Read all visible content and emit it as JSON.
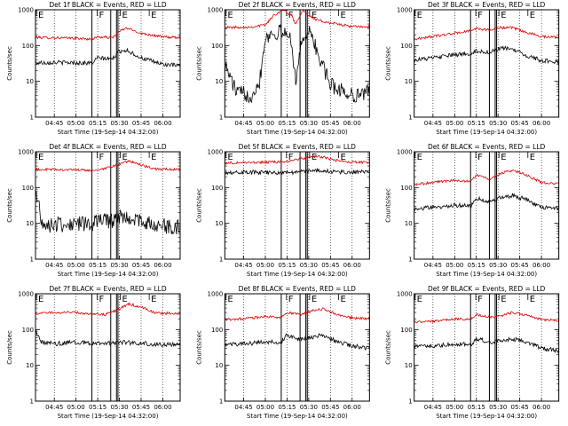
{
  "figure": {
    "background": "#ffffff",
    "series_colors": {
      "black": "#000000",
      "red": "#dd0000"
    }
  },
  "chart_data": [
    {
      "type": "line",
      "title": "Det 1f BLACK = Events, RED = LLD",
      "xlabel": "Start Time (19-Sep-14 04:32:00)",
      "ylabel": "Counts/sec",
      "xlim": [
        "04:32",
        "06:12"
      ],
      "xticks": [
        "04:45",
        "05:00",
        "05:15",
        "05:30",
        "05:45",
        "06:00"
      ],
      "ylim": [
        1,
        1000
      ],
      "ylog": true,
      "yticks": [
        "1",
        "10",
        "100",
        "1000"
      ],
      "segment_markers": [
        {
          "time": "04:32",
          "label": "E"
        },
        {
          "time": "05:14",
          "label": "F"
        },
        {
          "time": "05:30",
          "label": "E"
        },
        {
          "time": "05:50",
          "label": "E"
        }
      ],
      "boundaries": [
        "05:11",
        "05:24",
        "05:28",
        "05:29"
      ],
      "series": [
        {
          "color": "red",
          "x": [
            "04:32",
            "04:45",
            "05:00",
            "05:11",
            "05:15",
            "05:25",
            "05:30",
            "05:35",
            "05:45",
            "06:00",
            "06:12"
          ],
          "y": [
            170,
            165,
            160,
            150,
            175,
            165,
            250,
            310,
            220,
            175,
            165
          ]
        },
        {
          "color": "black",
          "x": [
            "04:32",
            "04:45",
            "05:00",
            "05:11",
            "05:15",
            "05:25",
            "05:30",
            "05:35",
            "05:45",
            "06:00",
            "06:12"
          ],
          "y": [
            33,
            34,
            33,
            32,
            45,
            42,
            70,
            75,
            45,
            30,
            27
          ]
        }
      ]
    },
    {
      "type": "line",
      "title": "Det 2f BLACK = Events, RED = LLD",
      "xlabel": "Start Time (19-Sep-14 04:32:00)",
      "ylabel": "Counts/sec",
      "xlim": [
        "04:32",
        "06:12"
      ],
      "xticks": [
        "04:45",
        "05:00",
        "05:15",
        "05:30",
        "05:45",
        "06:00"
      ],
      "ylim": [
        1,
        1000
      ],
      "ylog": true,
      "yticks": [
        "1",
        "10",
        "100",
        "1000"
      ],
      "segment_markers": [
        {
          "time": "04:32",
          "label": "E"
        },
        {
          "time": "05:14",
          "label": "F"
        },
        {
          "time": "05:30",
          "label": "E"
        },
        {
          "time": "05:50",
          "label": "E"
        }
      ],
      "boundaries": [
        "05:11",
        "05:24",
        "05:28",
        "05:29"
      ],
      "series": [
        {
          "color": "red",
          "x": [
            "04:32",
            "04:50",
            "05:00",
            "05:06",
            "05:12",
            "05:18",
            "05:21",
            "05:26",
            "05:30",
            "05:35",
            "05:45",
            "06:00",
            "06:12"
          ],
          "y": [
            320,
            330,
            380,
            700,
            1000,
            700,
            400,
            1000,
            700,
            520,
            430,
            340,
            330
          ]
        },
        {
          "color": "black",
          "x": [
            "04:32",
            "04:40",
            "04:50",
            "04:56",
            "05:00",
            "05:06",
            "05:12",
            "05:18",
            "05:21",
            "05:26",
            "05:32",
            "05:36",
            "05:45",
            "06:00",
            "06:12"
          ],
          "y": [
            30,
            5,
            4,
            10,
            180,
            220,
            240,
            150,
            10,
            200,
            220,
            60,
            8,
            4,
            5
          ]
        }
      ]
    },
    {
      "type": "line",
      "title": "Det 3f BLACK = Events, RED = LLD",
      "xlabel": "Start Time (19-Sep-14 04:32:00)",
      "ylabel": "Counts/sec",
      "xlim": [
        "04:32",
        "06:12"
      ],
      "xticks": [
        "04:45",
        "05:00",
        "05:15",
        "05:30",
        "05:45",
        "06:00"
      ],
      "ylim": [
        1,
        1000
      ],
      "ylog": true,
      "yticks": [
        "1",
        "10",
        "100",
        "1000"
      ],
      "segment_markers": [
        {
          "time": "04:32",
          "label": "E"
        },
        {
          "time": "05:14",
          "label": "F"
        },
        {
          "time": "05:30",
          "label": "E"
        },
        {
          "time": "05:50",
          "label": "E"
        }
      ],
      "boundaries": [
        "05:11",
        "05:24",
        "05:28",
        "05:29"
      ],
      "series": [
        {
          "color": "red",
          "x": [
            "04:32",
            "04:45",
            "05:00",
            "05:11",
            "05:15",
            "05:25",
            "05:30",
            "05:40",
            "05:50",
            "06:00",
            "06:12"
          ],
          "y": [
            150,
            180,
            220,
            260,
            300,
            270,
            320,
            310,
            230,
            180,
            170
          ]
        },
        {
          "color": "black",
          "x": [
            "04:32",
            "04:45",
            "05:00",
            "05:11",
            "05:15",
            "05:25",
            "05:30",
            "05:38",
            "05:48",
            "06:00",
            "06:12"
          ],
          "y": [
            40,
            45,
            55,
            60,
            70,
            65,
            80,
            85,
            55,
            38,
            35
          ]
        }
      ]
    },
    {
      "type": "line",
      "title": "Det 4f BLACK = Events, RED = LLD",
      "xlabel": "Start Time (19-Sep-14 04:32:00)",
      "ylabel": "Counts/sec",
      "xlim": [
        "04:32",
        "06:12"
      ],
      "xticks": [
        "04:45",
        "05:00",
        "05:15",
        "05:30",
        "05:45",
        "06:00"
      ],
      "ylim": [
        1,
        1000
      ],
      "ylog": true,
      "yticks": [
        "1",
        "10",
        "100",
        "1000"
      ],
      "segment_markers": [
        {
          "time": "04:32",
          "label": "E"
        },
        {
          "time": "05:14",
          "label": "F"
        },
        {
          "time": "05:30",
          "label": "E"
        },
        {
          "time": "05:50",
          "label": "E"
        }
      ],
      "boundaries": [
        "05:11",
        "05:24",
        "05:28",
        "05:29"
      ],
      "series": [
        {
          "color": "red",
          "x": [
            "04:32",
            "04:45",
            "05:00",
            "05:11",
            "05:20",
            "05:30",
            "05:37",
            "05:45",
            "05:55",
            "06:12"
          ],
          "y": [
            320,
            320,
            310,
            300,
            330,
            450,
            560,
            420,
            330,
            320
          ]
        },
        {
          "color": "black",
          "x": [
            "04:32",
            "04:34",
            "04:37",
            "04:45",
            "05:00",
            "05:11",
            "05:15",
            "05:25",
            "05:30",
            "05:40",
            "06:00",
            "06:12"
          ],
          "y": [
            60,
            40,
            9,
            9,
            10,
            9,
            12,
            11,
            16,
            13,
            8,
            8
          ]
        }
      ]
    },
    {
      "type": "line",
      "title": "Det 5f BLACK = Events, RED = LLD",
      "xlabel": "Start Time (19-Sep-14 04:32:00)",
      "ylabel": "Counts/sec",
      "xlim": [
        "04:32",
        "06:12"
      ],
      "xticks": [
        "04:45",
        "05:00",
        "05:15",
        "05:30",
        "05:45",
        "06:00"
      ],
      "ylim": [
        1,
        1000
      ],
      "ylog": true,
      "yticks": [
        "1",
        "10",
        "100",
        "1000"
      ],
      "segment_markers": [
        {
          "time": "04:32",
          "label": "E"
        },
        {
          "time": "05:14",
          "label": "F"
        },
        {
          "time": "05:30",
          "label": "E"
        },
        {
          "time": "05:50",
          "label": "E"
        }
      ],
      "boundaries": [
        "05:11",
        "05:24",
        "05:28",
        "05:29"
      ],
      "series": [
        {
          "color": "red",
          "x": [
            "04:32",
            "04:45",
            "05:00",
            "05:11",
            "05:20",
            "05:30",
            "05:37",
            "05:45",
            "05:55",
            "06:12"
          ],
          "y": [
            480,
            500,
            510,
            520,
            580,
            700,
            760,
            620,
            520,
            500
          ]
        },
        {
          "color": "black",
          "x": [
            "04:32",
            "04:45",
            "05:00",
            "05:11",
            "05:20",
            "05:30",
            "05:37",
            "05:45",
            "05:55",
            "06:12"
          ],
          "y": [
            270,
            270,
            260,
            260,
            270,
            290,
            300,
            280,
            270,
            270
          ]
        }
      ]
    },
    {
      "type": "line",
      "title": "Det 6f BLACK = Events, RED = LLD",
      "xlabel": "Start Time (19-Sep-14 04:32:00)",
      "ylabel": "Counts/sec",
      "xlim": [
        "04:32",
        "06:12"
      ],
      "xticks": [
        "04:45",
        "05:00",
        "05:15",
        "05:30",
        "05:45",
        "06:00"
      ],
      "ylim": [
        1,
        1000
      ],
      "ylog": true,
      "yticks": [
        "1",
        "10",
        "100",
        "1000"
      ],
      "segment_markers": [
        {
          "time": "04:32",
          "label": "E"
        },
        {
          "time": "05:14",
          "label": "F"
        },
        {
          "time": "05:30",
          "label": "E"
        },
        {
          "time": "05:50",
          "label": "E"
        }
      ],
      "boundaries": [
        "05:11",
        "05:24",
        "05:28",
        "05:29"
      ],
      "series": [
        {
          "color": "red",
          "x": [
            "04:32",
            "04:45",
            "05:00",
            "05:11",
            "05:15",
            "05:25",
            "05:30",
            "05:40",
            "05:50",
            "06:00",
            "06:12"
          ],
          "y": [
            120,
            140,
            160,
            150,
            220,
            170,
            230,
            310,
            220,
            140,
            130
          ]
        },
        {
          "color": "black",
          "x": [
            "04:32",
            "04:45",
            "05:00",
            "05:11",
            "05:15",
            "05:25",
            "05:30",
            "05:40",
            "05:50",
            "06:00",
            "06:12"
          ],
          "y": [
            25,
            28,
            32,
            30,
            50,
            38,
            50,
            60,
            45,
            28,
            26
          ]
        }
      ]
    },
    {
      "type": "line",
      "title": "Det 7f BLACK = Events, RED = LLD",
      "xlabel": "Start Time (19-Sep-14 04:32:00)",
      "ylabel": "Counts/sec",
      "xlim": [
        "04:32",
        "06:12"
      ],
      "xticks": [
        "04:45",
        "05:00",
        "05:15",
        "05:30",
        "05:45",
        "06:00"
      ],
      "ylim": [
        1,
        1000
      ],
      "ylog": true,
      "yticks": [
        "1",
        "10",
        "100",
        "1000"
      ],
      "segment_markers": [
        {
          "time": "04:32",
          "label": "E"
        },
        {
          "time": "05:14",
          "label": "F"
        },
        {
          "time": "05:30",
          "label": "E"
        },
        {
          "time": "05:50",
          "label": "E"
        }
      ],
      "boundaries": [
        "05:11",
        "05:24",
        "05:28",
        "05:29"
      ],
      "series": [
        {
          "color": "red",
          "x": [
            "04:32",
            "04:45",
            "05:00",
            "05:11",
            "05:20",
            "05:28",
            "05:37",
            "05:45",
            "05:55",
            "06:12"
          ],
          "y": [
            280,
            300,
            300,
            270,
            260,
            350,
            520,
            420,
            290,
            280
          ]
        },
        {
          "color": "black",
          "x": [
            "04:32",
            "04:34",
            "04:36",
            "04:45",
            "05:00",
            "05:11",
            "05:20",
            "05:30",
            "05:40",
            "06:00",
            "06:12"
          ],
          "y": [
            90,
            60,
            45,
            40,
            45,
            42,
            40,
            45,
            42,
            38,
            38
          ]
        }
      ]
    },
    {
      "type": "line",
      "title": "Det 8f BLACK = Events, RED = LLD",
      "xlabel": "Start Time (19-Sep-14 04:32:00)",
      "ylabel": "Counts/sec",
      "xlim": [
        "04:32",
        "06:12"
      ],
      "xticks": [
        "04:45",
        "05:00",
        "05:15",
        "05:30",
        "05:45",
        "06:00"
      ],
      "ylim": [
        1,
        1000
      ],
      "ylog": true,
      "yticks": [
        "1",
        "10",
        "100",
        "1000"
      ],
      "segment_markers": [
        {
          "time": "04:32",
          "label": "E"
        },
        {
          "time": "05:14",
          "label": "F"
        },
        {
          "time": "05:30",
          "label": "E"
        },
        {
          "time": "05:50",
          "label": "E"
        }
      ],
      "boundaries": [
        "05:11",
        "05:24",
        "05:28",
        "05:29"
      ],
      "series": [
        {
          "color": "red",
          "x": [
            "04:32",
            "04:45",
            "05:00",
            "05:11",
            "05:15",
            "05:25",
            "05:30",
            "05:40",
            "05:50",
            "06:00",
            "06:12"
          ],
          "y": [
            190,
            200,
            230,
            220,
            300,
            260,
            320,
            380,
            260,
            210,
            200
          ]
        },
        {
          "color": "black",
          "x": [
            "04:32",
            "04:45",
            "05:00",
            "05:11",
            "05:15",
            "05:25",
            "05:30",
            "05:40",
            "05:50",
            "06:00",
            "06:12"
          ],
          "y": [
            38,
            40,
            45,
            44,
            70,
            52,
            60,
            70,
            45,
            35,
            30
          ]
        }
      ]
    },
    {
      "type": "line",
      "title": "Det 9f BLACK = Events, RED = LLD",
      "xlabel": "Start Time (19-Sep-14 04:32:00)",
      "ylabel": "Counts/sec",
      "xlim": [
        "04:32",
        "06:12"
      ],
      "xticks": [
        "04:45",
        "05:00",
        "05:15",
        "05:30",
        "05:45",
        "06:00"
      ],
      "ylim": [
        1,
        1000
      ],
      "ylog": true,
      "yticks": [
        "1",
        "10",
        "100",
        "1000"
      ],
      "segment_markers": [
        {
          "time": "04:32",
          "label": "E"
        },
        {
          "time": "05:14",
          "label": "F"
        },
        {
          "time": "05:30",
          "label": "E"
        },
        {
          "time": "05:50",
          "label": "E"
        }
      ],
      "boundaries": [
        "05:11",
        "05:24",
        "05:28",
        "05:29"
      ],
      "series": [
        {
          "color": "red",
          "x": [
            "04:32",
            "04:45",
            "05:00",
            "05:11",
            "05:15",
            "05:25",
            "05:30",
            "05:40",
            "05:50",
            "06:00",
            "06:12"
          ],
          "y": [
            160,
            170,
            200,
            190,
            260,
            220,
            230,
            300,
            250,
            190,
            180
          ]
        },
        {
          "color": "black",
          "x": [
            "04:32",
            "04:45",
            "05:00",
            "05:11",
            "05:15",
            "05:25",
            "05:30",
            "05:40",
            "05:50",
            "06:00",
            "06:12"
          ],
          "y": [
            33,
            35,
            40,
            38,
            55,
            45,
            48,
            55,
            45,
            30,
            26
          ]
        }
      ]
    }
  ]
}
